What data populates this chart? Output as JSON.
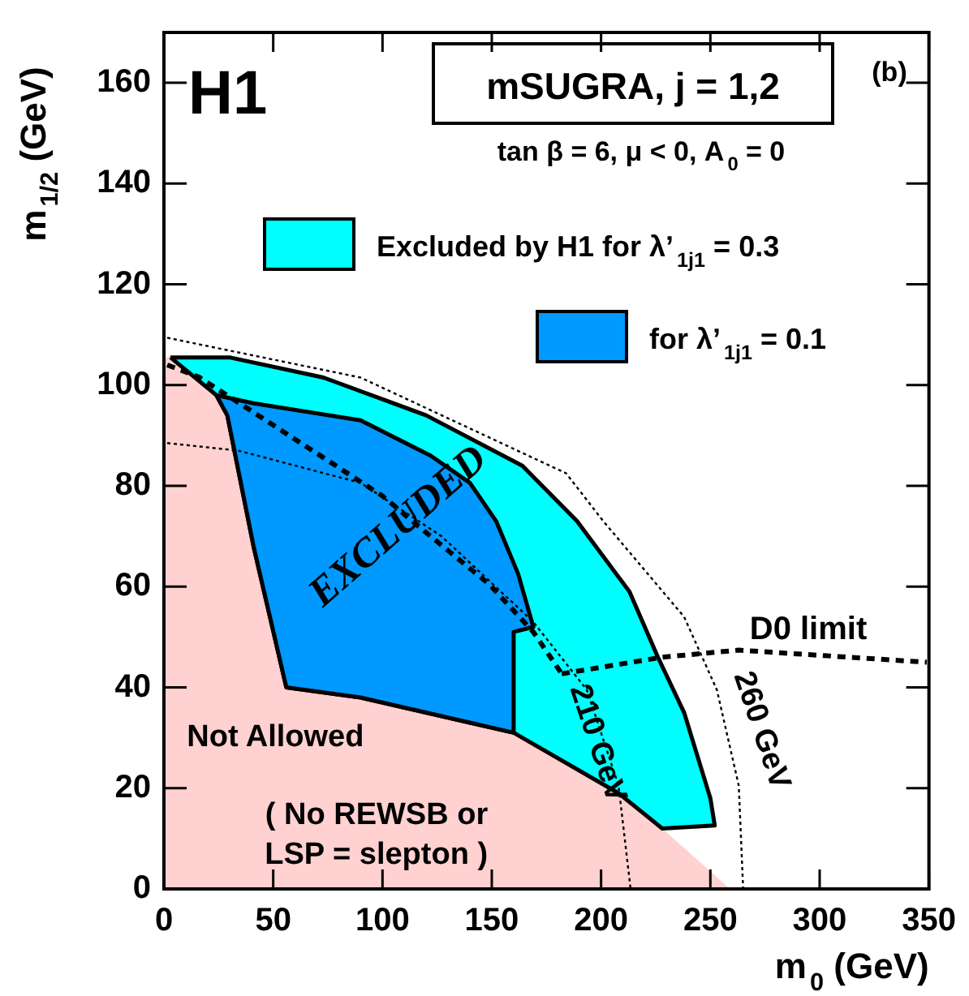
{
  "chart_data": {
    "type": "line",
    "title": "H1",
    "subtitle": "mSUGRA, j = 1,2",
    "xlabel": "m$_{0}$ (GeV)",
    "ylabel": "m$_{1/2}$ (GeV)",
    "xlim": [
      0,
      350
    ],
    "ylim": [
      0,
      170
    ],
    "xticks": [
      0,
      50,
      100,
      150,
      200,
      250,
      300,
      350
    ],
    "yticks": [
      0,
      20,
      40,
      60,
      80,
      100,
      120,
      140,
      160
    ],
    "grid": false,
    "legend": "top right",
    "marker": "none",
    "annotations": [
      "(b)",
      "tan β = 6, μ < 0, A$_{0}$ = 0",
      "EXCLUDED",
      "D0 limit",
      "210 GeV",
      "260 GeV",
      "Not Allowed",
      "( No REWSB or\nLSP = slepton )"
    ],
    "series": [
      {
        "type": "area",
        "color": "#ff0000",
        "x": [
          0,
          0,
          3,
          24,
          29,
          41,
          56,
          90,
          140,
          160,
          208,
          228,
          259
        ],
        "values": [
          0,
          105,
          106,
          98,
          94,
          68,
          40,
          38,
          33,
          31,
          19,
          12,
          0
        ]
      },
      {
        "type": "area",
        "name": "Excluded by H1 for λ’$_{1j1}$ = 0.3",
        "color": "#00ffff",
        "x": [
          3,
          30,
          73,
          120,
          164,
          189,
          213,
          226,
          238,
          250,
          252,
          228,
          208,
          160,
          140,
          90,
          56,
          41,
          29,
          24,
          3
        ],
        "values": [
          105.5,
          105.5,
          101.5,
          94,
          84,
          73,
          59,
          46,
          35,
          18,
          12.6,
          12,
          19,
          31,
          33,
          38,
          40,
          68,
          94,
          98,
          105.5
        ]
      },
      {
        "type": "area",
        "name": "for λ’$_{1j1}$ = 0.1",
        "color": "#0099ff",
        "x": [
          24,
          41,
          90,
          122,
          140,
          152,
          162,
          169,
          160,
          160,
          140,
          90,
          56,
          41,
          29,
          24
        ],
        "values": [
          98,
          96.4,
          93,
          86,
          80.6,
          73,
          62.6,
          52,
          51,
          31,
          33,
          38,
          40,
          68,
          94,
          98
        ]
      },
      {
        "type": "line",
        "color": "#000000",
        "line_style": "dotted",
        "x": [
          1.5,
          90,
          184,
          201,
          238,
          253,
          263,
          265
        ],
        "values": [
          109.4,
          101.5,
          82.5,
          73,
          54,
          39.5,
          20.5,
          0
        ]
      },
      {
        "type": "line",
        "color": "#000000",
        "line_style": "dotted",
        "x": [
          1.5,
          34,
          90,
          127,
          169,
          193.5,
          208,
          213.5
        ],
        "values": [
          88.5,
          87,
          80.6,
          70,
          53,
          39.5,
          20.5,
          0
        ]
      },
      {
        "type": "line",
        "color": "#000000",
        "line_style": "dashed",
        "x": [
          1.5,
          16,
          31,
          100,
          122,
          149,
          169,
          182
        ],
        "values": [
          104,
          101.6,
          97.4,
          78,
          70,
          60.4,
          51,
          42.7
        ]
      },
      {
        "type": "line",
        "color": "#000000",
        "line_style": "dashed",
        "x": [
          182,
          228,
          263,
          349
        ],
        "values": [
          42.7,
          46,
          47.4,
          45
        ]
      }
    ]
  }
}
